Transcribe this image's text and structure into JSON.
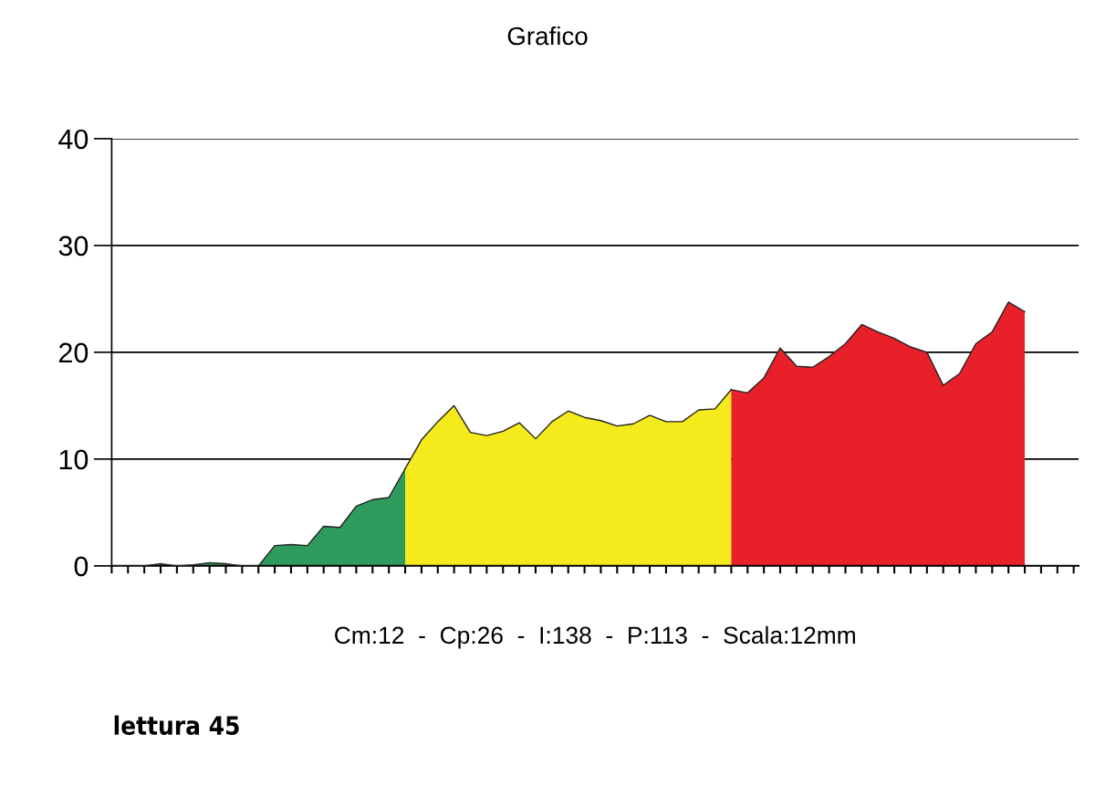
{
  "chart_data": {
    "type": "area",
    "title": "Grafico",
    "xlabel": "Cm:12  -  Cp:26  -  I:138  -  P:113  -  Scala:12mm",
    "annotations": [
      "lettura 45"
    ],
    "categories": [
      null,
      null,
      null,
      null,
      null,
      null,
      null,
      null,
      null,
      null,
      null,
      null,
      null,
      null,
      null,
      null,
      null,
      null,
      null,
      null,
      null,
      null,
      null,
      null,
      null,
      null,
      null,
      null,
      null,
      null,
      null,
      null,
      null,
      null,
      null,
      null,
      null,
      null,
      null,
      null,
      null,
      null,
      null,
      null,
      null,
      null,
      null,
      null,
      null,
      null,
      null,
      null,
      null,
      null,
      null,
      null,
      null,
      null,
      null,
      null
    ],
    "ylim": [
      0,
      40
    ],
    "yticks": [
      0,
      10,
      20,
      30,
      40
    ],
    "grid": "y",
    "tick_labels": "y",
    "series": [
      {
        "color": "#2e9a5c",
        "values": [
          0,
          0,
          0,
          0.2,
          0,
          0.1,
          0.3,
          0.2,
          0,
          0,
          1.9,
          2.0,
          1.9,
          3.7,
          3.6,
          5.6,
          6.2,
          6.4,
          9.1,
          null,
          null,
          null,
          null,
          null,
          null,
          null,
          null,
          null,
          null,
          null,
          null,
          null,
          null,
          null,
          null,
          null,
          null,
          null,
          null,
          null,
          null,
          null,
          null,
          null,
          null,
          null,
          null,
          null,
          null,
          null,
          null,
          null,
          null,
          null,
          null,
          null,
          null,
          null,
          null,
          null
        ]
      },
      {
        "color": "#f5ea1c",
        "values": [
          null,
          null,
          null,
          null,
          null,
          null,
          null,
          null,
          null,
          null,
          null,
          null,
          null,
          null,
          null,
          null,
          null,
          null,
          9.1,
          11.8,
          13.5,
          15.0,
          12.5,
          12.2,
          12.6,
          13.4,
          11.9,
          13.5,
          14.5,
          13.9,
          13.6,
          13.1,
          13.3,
          14.1,
          13.5,
          13.5,
          14.6,
          14.7,
          16.5,
          null,
          null,
          null,
          null,
          null,
          null,
          null,
          null,
          null,
          null,
          null,
          null,
          null,
          null,
          null,
          null,
          null,
          null,
          null,
          null,
          null
        ]
      },
      {
        "color": "#e8202a",
        "values": [
          null,
          null,
          null,
          null,
          null,
          null,
          null,
          null,
          null,
          null,
          null,
          null,
          null,
          null,
          null,
          null,
          null,
          null,
          null,
          null,
          null,
          null,
          null,
          null,
          null,
          null,
          null,
          null,
          null,
          null,
          null,
          null,
          null,
          null,
          null,
          null,
          null,
          null,
          16.5,
          16.2,
          17.6,
          20.4,
          18.7,
          18.6,
          19.6,
          20.8,
          22.6,
          21.9,
          21.3,
          20.5,
          20.0,
          16.9,
          18.0,
          20.8,
          21.9,
          24.7,
          23.8,
          null,
          null,
          null
        ]
      }
    ]
  }
}
